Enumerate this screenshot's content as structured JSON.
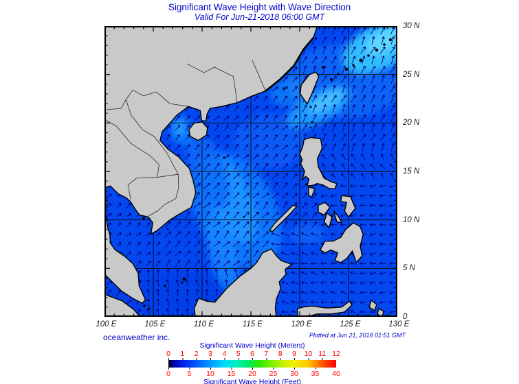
{
  "header": {
    "title": "Significant Wave Height with Wave Direction",
    "subtitle": "Valid For Jun-21-2018 06:00 GMT"
  },
  "footer": {
    "credit": "oceanweather inc.",
    "plotted": "Plotted at Jun 21, 2018 01:51 GMT"
  },
  "axes": {
    "lat_labels": [
      "30 N",
      "25 N",
      "20 N",
      "15 N",
      "10 N",
      "5 N",
      "0"
    ],
    "lon_labels": [
      "100 E",
      "105 E",
      "110 E",
      "115 E",
      "120 E",
      "125 E",
      "130 E"
    ],
    "lon_range_deg": [
      100,
      130
    ],
    "lat_range_deg": [
      0,
      30
    ],
    "grid_interval_deg": 5
  },
  "legend": {
    "meters_title": "Significant Wave Height (Meters)",
    "feet_title": "Significant Wave Height (Feet)",
    "meters_ticks": [
      "0",
      "1",
      "2",
      "3",
      "4",
      "5",
      "6",
      "7",
      "8",
      "9",
      "10",
      "11",
      "12"
    ],
    "feet_ticks": [
      "0",
      "5",
      "10",
      "15",
      "20",
      "25",
      "30",
      "35",
      "40"
    ]
  },
  "colors": {
    "title_blue": "#0000cd",
    "tick_red": "#ff0000",
    "ocean_blue": "#0347ef",
    "land_gray": "#c9c9c9",
    "arrow_navy": "#000080",
    "grid_black": "#000000"
  }
}
